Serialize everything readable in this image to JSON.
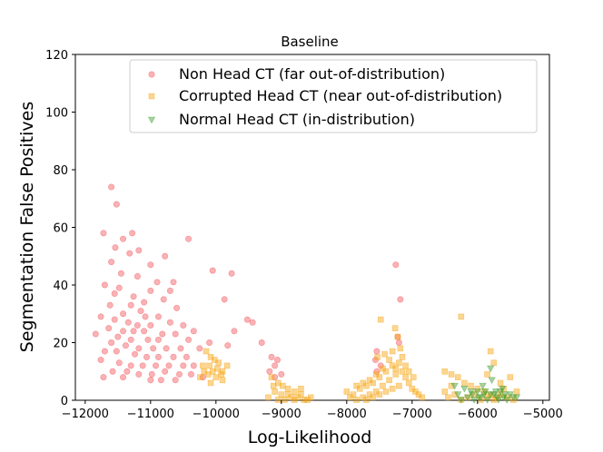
{
  "chart_data": {
    "type": "scatter",
    "title": "Baseline",
    "xlabel": "Log-Likelihood",
    "ylabel": "Segmentation False Positives",
    "xlim": [
      -12150,
      -4900
    ],
    "ylim": [
      0,
      120
    ],
    "xticks": [
      -12000,
      -11000,
      -10000,
      -9000,
      -8000,
      -7000,
      -6000,
      -5000
    ],
    "xtick_labels": [
      "−12000",
      "−11000",
      "−10000",
      "−9000",
      "−8000",
      "−7000",
      "−6000",
      "−5000"
    ],
    "yticks": [
      0,
      20,
      40,
      60,
      80,
      100,
      120
    ],
    "ytick_labels": [
      "0",
      "20",
      "40",
      "60",
      "80",
      "100",
      "120"
    ],
    "legend_position": "top-right",
    "series": [
      {
        "name": "Non Head CT (far out-of-distribution)",
        "marker": "circle",
        "color": "#f2545b",
        "points": [
          [
            -11600,
            74
          ],
          [
            -11520,
            68
          ],
          [
            -11720,
            58
          ],
          [
            -11420,
            56
          ],
          [
            -11280,
            58
          ],
          [
            -11180,
            52
          ],
          [
            -10420,
            56
          ],
          [
            -11540,
            53
          ],
          [
            -11320,
            51
          ],
          [
            -10780,
            50
          ],
          [
            -11600,
            48
          ],
          [
            -11000,
            47
          ],
          [
            -10050,
            45
          ],
          [
            -9760,
            44
          ],
          [
            -11450,
            44
          ],
          [
            -11200,
            43
          ],
          [
            -10900,
            41
          ],
          [
            -10650,
            41
          ],
          [
            -7250,
            47
          ],
          [
            -11700,
            40
          ],
          [
            -11480,
            39
          ],
          [
            -11000,
            38
          ],
          [
            -10700,
            38
          ],
          [
            -11550,
            37
          ],
          [
            -11260,
            36
          ],
          [
            -10800,
            35
          ],
          [
            -9870,
            35
          ],
          [
            -7180,
            35
          ],
          [
            -11100,
            34
          ],
          [
            -11620,
            33
          ],
          [
            -11300,
            33
          ],
          [
            -10600,
            32
          ],
          [
            -11150,
            31
          ],
          [
            -11420,
            30
          ],
          [
            -11760,
            29
          ],
          [
            -11080,
            29
          ],
          [
            -10880,
            29
          ],
          [
            -11550,
            28
          ],
          [
            -11340,
            27
          ],
          [
            -10700,
            27
          ],
          [
            -11200,
            26
          ],
          [
            -11000,
            26
          ],
          [
            -10500,
            26
          ],
          [
            -9520,
            28
          ],
          [
            -9440,
            27
          ],
          [
            -11640,
            25
          ],
          [
            -11420,
            24
          ],
          [
            -11260,
            24
          ],
          [
            -11100,
            24
          ],
          [
            -10820,
            23
          ],
          [
            -10620,
            23
          ],
          [
            -10340,
            24
          ],
          [
            -9720,
            24
          ],
          [
            -11840,
            23
          ],
          [
            -11500,
            22
          ],
          [
            -11300,
            21
          ],
          [
            -11040,
            21
          ],
          [
            -10880,
            21
          ],
          [
            -10420,
            21
          ],
          [
            -10100,
            20
          ],
          [
            -9300,
            20
          ],
          [
            -11600,
            20
          ],
          [
            -11380,
            19
          ],
          [
            -11180,
            18
          ],
          [
            -10960,
            18
          ],
          [
            -10760,
            18
          ],
          [
            -10540,
            18
          ],
          [
            -10250,
            18
          ],
          [
            -9820,
            19
          ],
          [
            -11700,
            17
          ],
          [
            -11520,
            17
          ],
          [
            -11240,
            16
          ],
          [
            -11060,
            15
          ],
          [
            -10880,
            15
          ],
          [
            -10650,
            15
          ],
          [
            -10450,
            15
          ],
          [
            -9150,
            15
          ],
          [
            -9060,
            14
          ],
          [
            -11760,
            14
          ],
          [
            -11480,
            13
          ],
          [
            -11300,
            12
          ],
          [
            -11120,
            12
          ],
          [
            -10920,
            12
          ],
          [
            -10720,
            12
          ],
          [
            -10500,
            12
          ],
          [
            -10340,
            12
          ],
          [
            -9100,
            12
          ],
          [
            -11580,
            10
          ],
          [
            -11360,
            10
          ],
          [
            -11180,
            9
          ],
          [
            -10980,
            9
          ],
          [
            -10780,
            10
          ],
          [
            -10560,
            9
          ],
          [
            -10380,
            9
          ],
          [
            -9180,
            10
          ],
          [
            -11720,
            8
          ],
          [
            -11420,
            8
          ],
          [
            -11000,
            7
          ],
          [
            -10840,
            7
          ],
          [
            -10620,
            7
          ],
          [
            -10200,
            8
          ],
          [
            -7540,
            17
          ],
          [
            -7560,
            14
          ],
          [
            -7480,
            12
          ],
          [
            -7540,
            10
          ],
          [
            -7220,
            22
          ],
          [
            -7200,
            20
          ],
          [
            -9100,
            8
          ],
          [
            -9000,
            9
          ]
        ]
      },
      {
        "name": "Corrupted Head CT (near out-of-distribution)",
        "marker": "square",
        "color": "#f7a30e",
        "points": [
          [
            -10150,
            17
          ],
          [
            -10080,
            15
          ],
          [
            -10020,
            14
          ],
          [
            -9960,
            13
          ],
          [
            -10200,
            12
          ],
          [
            -10100,
            12
          ],
          [
            -9980,
            11
          ],
          [
            -10050,
            10
          ],
          [
            -10180,
            10
          ],
          [
            -9920,
            9
          ],
          [
            -10120,
            9
          ],
          [
            -10000,
            8
          ],
          [
            -10240,
            8
          ],
          [
            -9900,
            7
          ],
          [
            -10080,
            6
          ],
          [
            -9830,
            12
          ],
          [
            -9900,
            10
          ],
          [
            -9150,
            8
          ],
          [
            -9050,
            6
          ],
          [
            -8980,
            5
          ],
          [
            -8900,
            4
          ],
          [
            -8800,
            3
          ],
          [
            -8700,
            2
          ],
          [
            -9100,
            3
          ],
          [
            -9000,
            2
          ],
          [
            -8850,
            1
          ],
          [
            -8750,
            1
          ],
          [
            -8650,
            0
          ],
          [
            -9200,
            1
          ],
          [
            -8950,
            0
          ],
          [
            -8600,
            0
          ],
          [
            -8550,
            1
          ],
          [
            -9050,
            0
          ],
          [
            -8800,
            0
          ],
          [
            -8900,
            2
          ],
          [
            -9120,
            5
          ],
          [
            -8700,
            4
          ],
          [
            -8000,
            3
          ],
          [
            -7900,
            2
          ],
          [
            -7800,
            4
          ],
          [
            -7700,
            5
          ],
          [
            -7600,
            6
          ],
          [
            -7500,
            8
          ],
          [
            -7400,
            10
          ],
          [
            -7300,
            12
          ],
          [
            -7200,
            13
          ],
          [
            -7150,
            10
          ],
          [
            -7250,
            9
          ],
          [
            -7350,
            7
          ],
          [
            -7450,
            5
          ],
          [
            -7550,
            3
          ],
          [
            -7650,
            2
          ],
          [
            -7750,
            1
          ],
          [
            -7850,
            0
          ],
          [
            -7950,
            1
          ],
          [
            -7100,
            8
          ],
          [
            -7050,
            6
          ],
          [
            -7000,
            4
          ],
          [
            -6950,
            3
          ],
          [
            -6900,
            2
          ],
          [
            -6850,
            1
          ],
          [
            -7200,
            5
          ],
          [
            -7300,
            4
          ],
          [
            -7400,
            3
          ],
          [
            -7500,
            2
          ],
          [
            -7600,
            1
          ],
          [
            -7700,
            0
          ],
          [
            -7480,
            28
          ],
          [
            -7260,
            25
          ],
          [
            -7220,
            22
          ],
          [
            -7180,
            18
          ],
          [
            -7300,
            17
          ],
          [
            -7420,
            16
          ],
          [
            -7530,
            15
          ],
          [
            -7350,
            14
          ],
          [
            -7150,
            15
          ],
          [
            -7250,
            11
          ],
          [
            -7450,
            11
          ],
          [
            -7100,
            12
          ],
          [
            -7050,
            10
          ],
          [
            -7550,
            9
          ],
          [
            -6980,
            8
          ],
          [
            -7650,
            7
          ],
          [
            -7750,
            6
          ],
          [
            -7850,
            5
          ],
          [
            -6400,
            9
          ],
          [
            -6300,
            8
          ],
          [
            -6200,
            6
          ],
          [
            -6100,
            5
          ],
          [
            -6000,
            4
          ],
          [
            -5900,
            3
          ],
          [
            -5800,
            2
          ],
          [
            -5700,
            1
          ],
          [
            -6500,
            3
          ],
          [
            -6450,
            1
          ],
          [
            -6350,
            2
          ],
          [
            -6250,
            0
          ],
          [
            -6150,
            1
          ],
          [
            -6050,
            2
          ],
          [
            -5950,
            0
          ],
          [
            -5850,
            1
          ],
          [
            -5750,
            0
          ],
          [
            -5650,
            2
          ],
          [
            -5550,
            1
          ],
          [
            -5450,
            0
          ],
          [
            -6250,
            29
          ],
          [
            -5800,
            17
          ],
          [
            -5750,
            13
          ],
          [
            -5650,
            6
          ],
          [
            -5850,
            9
          ],
          [
            -6500,
            10
          ],
          [
            -5500,
            8
          ],
          [
            -6400,
            5
          ],
          [
            -5600,
            4
          ],
          [
            -5400,
            3
          ]
        ]
      },
      {
        "name": "Normal Head CT (in-distribution)",
        "marker": "triangle-down",
        "color": "#3e9a2b",
        "points": [
          [
            -6350,
            5
          ],
          [
            -6200,
            4
          ],
          [
            -6100,
            3
          ],
          [
            -6000,
            3
          ],
          [
            -5900,
            2
          ],
          [
            -5800,
            2
          ],
          [
            -5700,
            1
          ],
          [
            -5600,
            1
          ],
          [
            -5500,
            2
          ],
          [
            -5400,
            1
          ],
          [
            -6300,
            2
          ],
          [
            -6150,
            1
          ],
          [
            -6050,
            0
          ],
          [
            -5950,
            1
          ],
          [
            -5850,
            0
          ],
          [
            -5750,
            2
          ],
          [
            -5650,
            3
          ],
          [
            -5550,
            0
          ],
          [
            -5450,
            1
          ],
          [
            -6250,
            0
          ],
          [
            -5800,
            11
          ],
          [
            -5780,
            7
          ],
          [
            -5620,
            4
          ],
          [
            -5920,
            5
          ],
          [
            -6080,
            2
          ],
          [
            -5720,
            3
          ],
          [
            -5980,
            1
          ],
          [
            -5880,
            3
          ],
          [
            -5680,
            0
          ],
          [
            -5580,
            2
          ]
        ]
      }
    ]
  }
}
